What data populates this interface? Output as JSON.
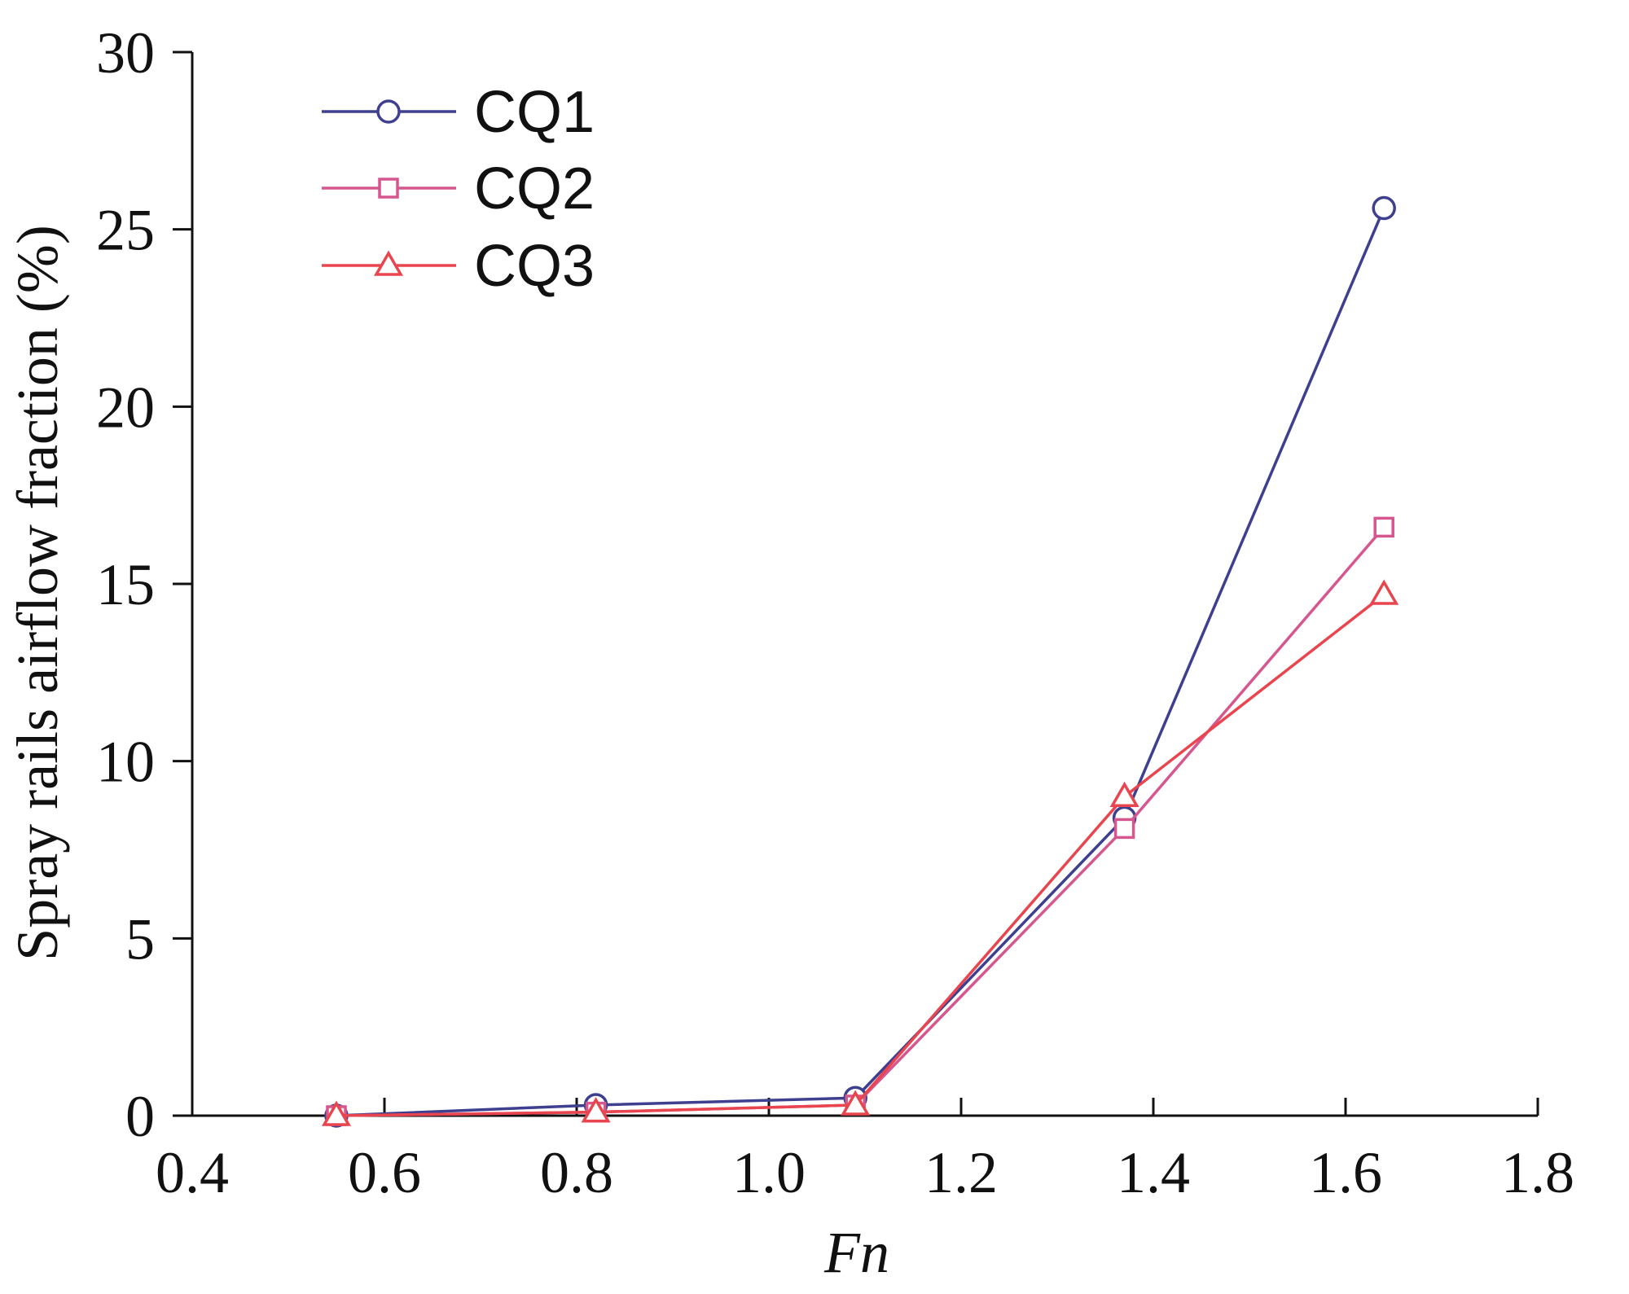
{
  "chart_data": {
    "type": "line",
    "title": "",
    "xlabel": "Fn",
    "ylabel": "Spray rails airflow fraction (%)",
    "xlim": [
      0.4,
      1.8
    ],
    "ylim": [
      0,
      30
    ],
    "xticks": [
      0.4,
      0.6,
      0.8,
      1.0,
      1.2,
      1.4,
      1.6,
      1.8
    ],
    "xtick_labels": [
      "0.4",
      "0.6",
      "0.8",
      "1.0",
      "1.2",
      "1.4",
      "1.6",
      "1.8"
    ],
    "yticks": [
      0,
      5,
      10,
      15,
      20,
      25,
      30
    ],
    "ytick_labels": [
      "0",
      "5",
      "10",
      "15",
      "20",
      "25",
      "30"
    ],
    "grid": false,
    "legend_position": "top-left",
    "series": [
      {
        "name": "CQ1",
        "color": "#3e3f8f",
        "marker": "circle",
        "x": [
          0.55,
          0.82,
          1.09,
          1.37,
          1.64
        ],
        "values": [
          0.0,
          0.3,
          0.5,
          8.4,
          25.6
        ]
      },
      {
        "name": "CQ2",
        "color": "#d6578e",
        "marker": "square",
        "x": [
          0.55,
          0.82,
          1.09,
          1.37,
          1.64
        ],
        "values": [
          0.0,
          0.1,
          0.3,
          8.1,
          16.6
        ]
      },
      {
        "name": "CQ3",
        "color": "#e8454f",
        "marker": "triangle",
        "x": [
          0.55,
          0.82,
          1.09,
          1.37,
          1.64
        ],
        "values": [
          0.0,
          0.1,
          0.3,
          9.0,
          14.7
        ]
      }
    ]
  }
}
